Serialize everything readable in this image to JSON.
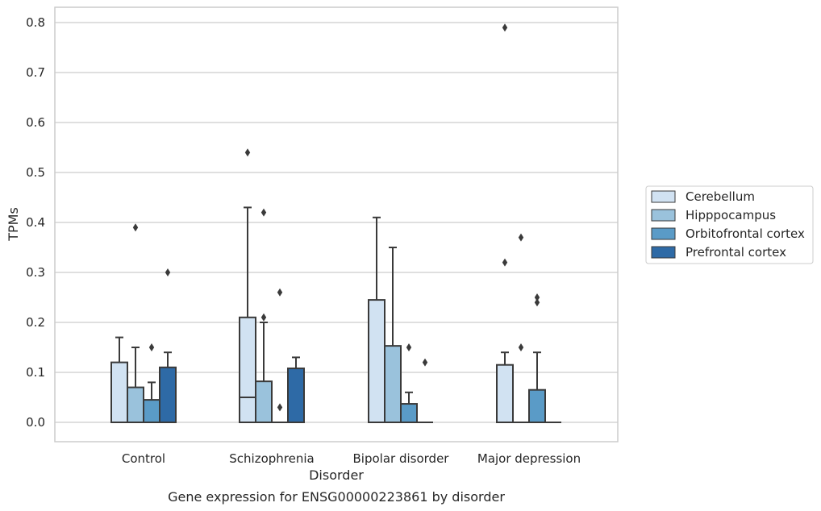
{
  "chart_data": {
    "type": "box",
    "title": "Gene expression for ENSG00000223861 by disorder",
    "xlabel": "Disorder",
    "ylabel": "TPMs",
    "ylim": [
      -0.04,
      0.83
    ],
    "yticks": [
      "0.0",
      "0.1",
      "0.2",
      "0.3",
      "0.4",
      "0.5",
      "0.6",
      "0.7",
      "0.8"
    ],
    "ytick_values": [
      0.0,
      0.1,
      0.2,
      0.3,
      0.4,
      0.5,
      0.6,
      0.7,
      0.8
    ],
    "grid": "horizontal",
    "legend_position": "right",
    "categories": [
      "Control",
      "Schizophrenia",
      "Bipolar disorder",
      "Major depression"
    ],
    "series": [
      {
        "name": "Cerebellum",
        "color": "#d1e2f2",
        "boxes": [
          {
            "q1": 0.0,
            "median": 0.0,
            "q3": 0.12,
            "whisker_low": 0.0,
            "whisker_high": 0.17,
            "outliers": []
          },
          {
            "q1": 0.0,
            "median": 0.05,
            "q3": 0.21,
            "whisker_low": 0.0,
            "whisker_high": 0.43,
            "outliers": [
              0.54
            ]
          },
          {
            "q1": 0.0,
            "median": 0.0,
            "q3": 0.245,
            "whisker_low": 0.0,
            "whisker_high": 0.41,
            "outliers": []
          },
          {
            "q1": 0.0,
            "median": 0.0,
            "q3": 0.115,
            "whisker_low": 0.0,
            "whisker_high": 0.14,
            "outliers": [
              0.32,
              0.79
            ]
          }
        ]
      },
      {
        "name": "Hipppocampus",
        "color": "#9ac2dc",
        "boxes": [
          {
            "q1": 0.0,
            "median": 0.0,
            "q3": 0.07,
            "whisker_low": 0.0,
            "whisker_high": 0.15,
            "outliers": [
              0.39
            ]
          },
          {
            "q1": 0.0,
            "median": 0.0,
            "q3": 0.082,
            "whisker_low": 0.0,
            "whisker_high": 0.2,
            "outliers": [
              0.21,
              0.42
            ]
          },
          {
            "q1": 0.0,
            "median": 0.0,
            "q3": 0.153,
            "whisker_low": 0.0,
            "whisker_high": 0.35,
            "outliers": []
          },
          {
            "q1": 0.0,
            "median": 0.0,
            "q3": 0.0,
            "whisker_low": 0.0,
            "whisker_high": 0.0,
            "outliers": [
              0.15,
              0.37
            ]
          }
        ]
      },
      {
        "name": "Orbitofrontal cortex",
        "color": "#5a9bc7",
        "boxes": [
          {
            "q1": 0.0,
            "median": 0.0,
            "q3": 0.045,
            "whisker_low": 0.0,
            "whisker_high": 0.08,
            "outliers": [
              0.15
            ]
          },
          {
            "q1": 0.0,
            "median": 0.0,
            "q3": 0.0,
            "whisker_low": 0.0,
            "whisker_high": 0.0,
            "outliers": [
              0.03,
              0.26
            ]
          },
          {
            "q1": 0.0,
            "median": 0.0,
            "q3": 0.037,
            "whisker_low": 0.0,
            "whisker_high": 0.06,
            "outliers": [
              0.15
            ]
          },
          {
            "q1": 0.0,
            "median": 0.0,
            "q3": 0.065,
            "whisker_low": 0.0,
            "whisker_high": 0.14,
            "outliers": [
              0.24,
              0.25
            ]
          }
        ]
      },
      {
        "name": "Prefrontal cortex",
        "color": "#2e6aa6",
        "boxes": [
          {
            "q1": 0.0,
            "median": 0.0,
            "q3": 0.11,
            "whisker_low": 0.0,
            "whisker_high": 0.14,
            "outliers": [
              0.3
            ]
          },
          {
            "q1": 0.0,
            "median": 0.0,
            "q3": 0.108,
            "whisker_low": 0.0,
            "whisker_high": 0.13,
            "outliers": []
          },
          {
            "q1": 0.0,
            "median": 0.0,
            "q3": 0.0,
            "whisker_low": 0.0,
            "whisker_high": 0.0,
            "outliers": [
              0.12
            ]
          },
          {
            "q1": 0.0,
            "median": 0.0,
            "q3": 0.0,
            "whisker_low": 0.0,
            "whisker_high": 0.0,
            "outliers": []
          }
        ]
      }
    ]
  }
}
